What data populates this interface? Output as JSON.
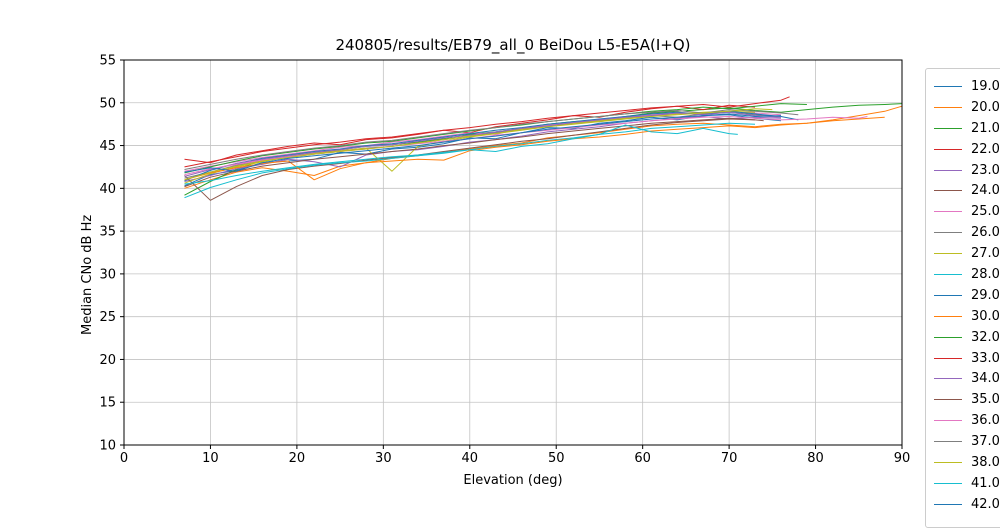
{
  "figure": {
    "title": "240805/results/EB79_all_0 BeiDou L5-E5A(I+Q)",
    "xlabel": "Elevation (deg)",
    "ylabel": "Median CNo dB Hz"
  },
  "chart_data": {
    "type": "line",
    "title": "240805/results/EB79_all_0 BeiDou L5-E5A(I+Q)",
    "xlabel": "Elevation (deg)",
    "ylabel": "Median CNo dB Hz",
    "xlim": [
      0,
      90
    ],
    "ylim": [
      10,
      55
    ],
    "xticks": [
      0,
      10,
      20,
      30,
      40,
      50,
      60,
      70,
      80,
      90
    ],
    "yticks": [
      10,
      15,
      20,
      25,
      30,
      35,
      40,
      45,
      50,
      55
    ],
    "grid": true,
    "grid_color": "#c3c3c3",
    "legend_position": "outside-right",
    "x_start": 7,
    "x_step": 3,
    "series": [
      {
        "name": "19.0",
        "color": "#1f77b4",
        "end": 76,
        "values": [
          40.3,
          41.6,
          42.1,
          43.0,
          43.2,
          43.4,
          44.2,
          44.0,
          44.6,
          44.8,
          45.2,
          45.9,
          45.8,
          46.5,
          47.1,
          47.0,
          47.6,
          47.9,
          48.3,
          48.0,
          48.5,
          48.6,
          48.2,
          47.9
        ]
      },
      {
        "name": "20.0",
        "color": "#ff7f0e",
        "end": 88,
        "values": [
          40.0,
          41.0,
          41.9,
          42.4,
          42.0,
          41.5,
          42.6,
          43.0,
          43.5,
          43.8,
          44.2,
          44.6,
          45.0,
          45.3,
          45.9,
          46.2,
          46.5,
          46.9,
          47.3,
          47.5,
          47.6,
          47.4,
          47.2,
          47.5,
          47.6,
          47.9,
          48.1,
          48.3
        ]
      },
      {
        "name": "21.0",
        "color": "#2ca02c",
        "end": 90,
        "values": [
          39.2,
          40.8,
          42.2,
          43.3,
          43.8,
          44.1,
          44.5,
          44.9,
          45.1,
          45.4,
          45.8,
          46.3,
          46.6,
          47.0,
          47.5,
          47.8,
          48.0,
          48.4,
          48.8,
          49.0,
          49.2,
          49.4,
          49.1,
          48.9,
          49.2,
          49.5,
          49.7,
          49.8,
          49.9
        ]
      },
      {
        "name": "22.0",
        "color": "#d62728",
        "end": 73,
        "values": [
          43.4,
          43.0,
          43.9,
          44.4,
          44.9,
          45.3,
          45.1,
          45.7,
          45.9,
          46.3,
          46.8,
          46.5,
          47.2,
          47.6,
          48.0,
          48.5,
          48.3,
          48.9,
          49.3,
          49.6,
          49.2,
          49.7,
          49.5
        ]
      },
      {
        "name": "23.0",
        "color": "#9467bd",
        "end": 76,
        "values": [
          40.8,
          41.5,
          42.3,
          42.8,
          43.4,
          43.1,
          42.5,
          43.9,
          44.3,
          44.5,
          44.9,
          45.4,
          45.7,
          46.1,
          46.6,
          46.9,
          47.2,
          47.6,
          47.9,
          48.2,
          48.4,
          48.1,
          48.3,
          48.2
        ]
      },
      {
        "name": "24.0",
        "color": "#8c564b",
        "end": 73,
        "values": [
          41.5,
          38.6,
          40.2,
          41.5,
          42.2,
          42.6,
          42.9,
          43.3,
          43.6,
          43.9,
          44.3,
          44.7,
          45.1,
          45.5,
          45.8,
          46.2,
          46.6,
          47.0,
          47.4,
          47.7,
          47.9,
          48.1,
          48.0
        ]
      },
      {
        "name": "25.0",
        "color": "#e377c2",
        "end": 76,
        "values": [
          42.0,
          42.6,
          43.1,
          43.6,
          44.0,
          44.4,
          44.8,
          45.0,
          45.4,
          45.7,
          46.1,
          46.5,
          46.3,
          47.0,
          47.4,
          47.7,
          48.0,
          48.3,
          48.6,
          48.9,
          48.7,
          49.0,
          48.8,
          48.6
        ]
      },
      {
        "name": "26.0",
        "color": "#7f7f7f",
        "end": 76,
        "values": [
          41.2,
          41.9,
          42.7,
          43.2,
          43.6,
          44.0,
          44.3,
          44.7,
          44.9,
          45.3,
          45.7,
          46.1,
          46.5,
          46.9,
          47.2,
          47.6,
          47.8,
          48.2,
          48.5,
          48.3,
          48.7,
          48.9,
          48.6,
          48.4
        ]
      },
      {
        "name": "27.0",
        "color": "#bcbd22",
        "end": 73,
        "values": [
          40.6,
          41.7,
          42.5,
          43.1,
          43.7,
          44.1,
          44.4,
          44.7,
          42.0,
          44.9,
          45.5,
          46.0,
          46.4,
          46.9,
          47.3,
          47.6,
          47.9,
          48.2,
          48.5,
          48.7,
          48.9,
          49.0,
          48.9
        ]
      },
      {
        "name": "28.0",
        "color": "#17becf",
        "end": 73,
        "values": [
          38.9,
          40.1,
          41.0,
          41.8,
          42.3,
          42.7,
          43.0,
          43.2,
          43.5,
          43.8,
          44.1,
          44.5,
          44.9,
          45.2,
          45.6,
          45.9,
          46.3,
          46.6,
          47.0,
          47.2,
          47.4,
          47.6,
          47.5
        ]
      },
      {
        "name": "29.0",
        "color": "#1f77b4",
        "end": 78,
        "values": [
          40.9,
          42.1,
          42.9,
          43.5,
          43.9,
          44.3,
          44.6,
          45.0,
          45.2,
          45.6,
          46.0,
          46.4,
          46.8,
          47.1,
          47.5,
          47.8,
          48.1,
          48.4,
          48.7,
          48.9,
          48.6,
          49.0,
          48.7,
          48.4,
          48.0
        ]
      },
      {
        "name": "30.0",
        "color": "#ff7f0e",
        "end": 90,
        "values": [
          41.0,
          41.8,
          42.4,
          42.9,
          43.2,
          41.0,
          42.3,
          43.0,
          43.2,
          43.4,
          43.3,
          44.4,
          44.8,
          45.1,
          45.5,
          45.8,
          46.0,
          46.3,
          46.7,
          46.9,
          47.1,
          47.3,
          47.1,
          47.4,
          47.6,
          48.0,
          48.5,
          49.0,
          49.6
        ]
      },
      {
        "name": "32.0",
        "color": "#2ca02c",
        "end": 79,
        "values": [
          41.8,
          42.5,
          43.2,
          43.8,
          44.2,
          44.6,
          44.9,
          45.3,
          45.5,
          45.9,
          46.3,
          46.7,
          47.1,
          47.4,
          47.8,
          48.1,
          48.4,
          48.7,
          49.0,
          49.2,
          49.5,
          49.3,
          49.6,
          49.9,
          49.8
        ]
      },
      {
        "name": "33.0",
        "color": "#d62728",
        "end": 77,
        "values": [
          42.5,
          43.1,
          43.7,
          44.3,
          44.7,
          45.1,
          45.4,
          45.8,
          46.0,
          46.4,
          46.8,
          47.1,
          47.5,
          47.8,
          48.2,
          48.5,
          48.8,
          49.1,
          49.4,
          49.6,
          49.8,
          49.5,
          49.9,
          50.3,
          50.7
        ]
      },
      {
        "name": "34.0",
        "color": "#9467bd",
        "end": 76,
        "values": [
          41.4,
          42.2,
          42.9,
          43.4,
          43.8,
          44.2,
          44.5,
          44.9,
          45.1,
          45.5,
          45.9,
          46.2,
          46.6,
          47.0,
          47.3,
          47.7,
          48.0,
          48.3,
          48.5,
          48.8,
          48.6,
          48.9,
          48.5,
          48.3
        ]
      },
      {
        "name": "35.0",
        "color": "#8c564b",
        "end": 74,
        "values": [
          40.2,
          41.3,
          42.0,
          42.6,
          43.0,
          43.4,
          43.7,
          44.0,
          44.3,
          44.6,
          45.0,
          45.3,
          45.7,
          46.0,
          46.4,
          46.7,
          47.0,
          47.3,
          47.6,
          47.8,
          48.0,
          48.2,
          48.0,
          47.9
        ]
      },
      {
        "name": "36.0",
        "color": "#e377c2",
        "end": 86,
        "values": [
          41.6,
          42.3,
          42.8,
          43.3,
          43.7,
          44.0,
          44.3,
          44.6,
          44.9,
          45.2,
          45.5,
          45.8,
          46.2,
          46.5,
          46.8,
          47.1,
          47.4,
          47.6,
          47.9,
          48.1,
          48.3,
          48.4,
          48.2,
          48.0,
          48.1,
          48.3,
          48.2,
          48.4
        ]
      },
      {
        "name": "37.0",
        "color": "#7f7f7f",
        "end": 78,
        "values": [
          42.2,
          42.8,
          43.4,
          43.9,
          44.3,
          44.7,
          45.0,
          45.4,
          45.6,
          46.0,
          46.4,
          46.8,
          47.1,
          47.5,
          47.8,
          48.1,
          48.4,
          48.7,
          48.9,
          49.1,
          48.8,
          49.2,
          49.0,
          48.8,
          48.6
        ]
      },
      {
        "name": "38.0",
        "color": "#bcbd22",
        "end": 75,
        "values": [
          41.0,
          41.9,
          42.6,
          43.2,
          43.6,
          44.0,
          44.3,
          44.6,
          44.9,
          45.3,
          45.7,
          46.1,
          46.4,
          46.8,
          47.2,
          47.5,
          47.8,
          48.1,
          48.4,
          48.6,
          48.8,
          49.0,
          49.3,
          49.2
        ]
      },
      {
        "name": "41.0",
        "color": "#17becf",
        "end": 71,
        "values": [
          40.5,
          40.9,
          41.5,
          42.0,
          42.4,
          42.8,
          43.1,
          43.4,
          43.7,
          43.9,
          44.2,
          44.5,
          44.3,
          44.9,
          45.2,
          45.8,
          46.3,
          47.4,
          46.6,
          46.4,
          47.0,
          46.4,
          46.3
        ]
      },
      {
        "name": "42.0",
        "color": "#1f77b4",
        "end": 76,
        "values": [
          41.9,
          42.4,
          42.0,
          43.0,
          43.5,
          43.8,
          44.1,
          44.4,
          44.7,
          45.0,
          45.4,
          45.8,
          46.1,
          46.5,
          46.9,
          47.2,
          47.5,
          47.8,
          48.1,
          48.3,
          48.5,
          48.7,
          48.4,
          48.5
        ]
      }
    ]
  }
}
